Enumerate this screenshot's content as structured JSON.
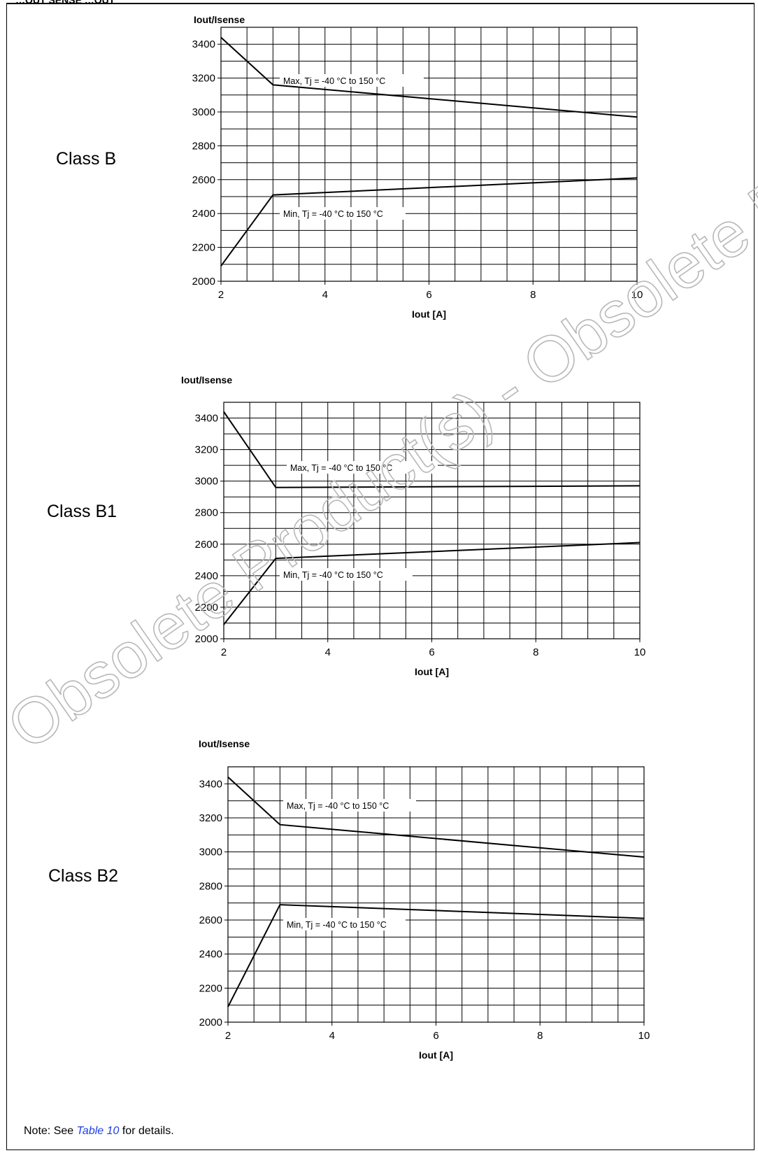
{
  "figure": {
    "title_fragment": "…OUT SENSE …OUT",
    "note_prefix": "Note: See ",
    "note_link": "Table 10",
    "note_suffix": " for details.",
    "watermark": "Obsolete Product(s) - Obsolete Product(s)"
  },
  "chart_data": [
    {
      "type": "line",
      "class_label": "Class B",
      "title": "Iout/Isense",
      "xlabel": "Iout [A]",
      "xlim": [
        2,
        10
      ],
      "ylim": [
        2000,
        3500
      ],
      "x_ticks": [
        "2",
        "4",
        "6",
        "8",
        "10"
      ],
      "y_ticks": [
        "2000",
        "2200",
        "2400",
        "2600",
        "2800",
        "3000",
        "3200",
        "3400"
      ],
      "grid": true,
      "series": [
        {
          "name": "Max, Tj = -40 °C to 150 °C",
          "x": [
            2,
            3,
            10
          ],
          "y": [
            3440,
            3160,
            2970
          ]
        },
        {
          "name": "Min, Tj = -40 °C to 150 °C",
          "x": [
            2,
            3,
            10
          ],
          "y": [
            2090,
            2510,
            2610
          ]
        }
      ]
    },
    {
      "type": "line",
      "class_label": "Class B1",
      "title": "Iout/Isense",
      "xlabel": "Iout [A]",
      "xlim": [
        2,
        10
      ],
      "ylim": [
        2000,
        3500
      ],
      "x_ticks": [
        "2",
        "4",
        "6",
        "8",
        "10"
      ],
      "y_ticks": [
        "2000",
        "2200",
        "2400",
        "2600",
        "2800",
        "3000",
        "3200",
        "3400"
      ],
      "grid": true,
      "series": [
        {
          "name": "Max, Tj = -40 °C to 150 °C",
          "x": [
            2,
            3,
            10
          ],
          "y": [
            3440,
            2960,
            2970
          ]
        },
        {
          "name": "Min, Tj = -40 °C to 150 °C",
          "x": [
            2,
            3,
            10
          ],
          "y": [
            2090,
            2510,
            2610
          ]
        }
      ]
    },
    {
      "type": "line",
      "class_label": "Class B2",
      "title": "Iout/Isense",
      "xlabel": "Iout [A]",
      "xlim": [
        2,
        10
      ],
      "ylim": [
        2000,
        3500
      ],
      "x_ticks": [
        "2",
        "4",
        "6",
        "8",
        "10"
      ],
      "y_ticks": [
        "2000",
        "2200",
        "2400",
        "2600",
        "2800",
        "3000",
        "3200",
        "3400"
      ],
      "grid": true,
      "series": [
        {
          "name": "Max, Tj = -40 °C to 150 °C",
          "x": [
            2,
            3,
            10
          ],
          "y": [
            3440,
            3160,
            2970
          ]
        },
        {
          "name": "Min, Tj = -40 °C to 150 °C",
          "x": [
            2,
            3,
            10
          ],
          "y": [
            2090,
            2690,
            2610
          ]
        }
      ]
    }
  ]
}
